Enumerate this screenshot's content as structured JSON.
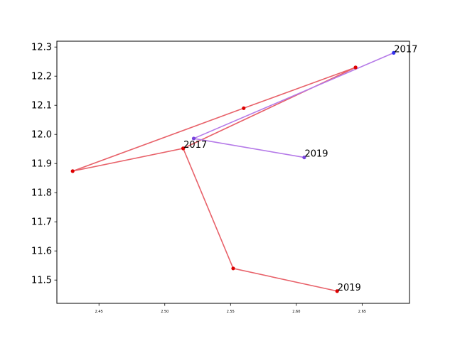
{
  "chart_data": {
    "type": "line",
    "title": "",
    "xlabel": "",
    "ylabel": "",
    "xlim": [
      2.418,
      2.686
    ],
    "ylim": [
      11.42,
      12.32
    ],
    "xticks": [
      "2.45",
      "2.50",
      "2.55",
      "2.60",
      "2.65"
    ],
    "xtick_values": [
      2.45,
      2.5,
      2.55,
      2.6,
      2.65
    ],
    "yticks": [
      "11.5",
      "11.6",
      "11.7",
      "11.8",
      "11.9",
      "12.0",
      "12.1",
      "12.2",
      "12.3"
    ],
    "ytick_values": [
      11.5,
      11.6,
      11.7,
      11.8,
      11.9,
      12.0,
      12.1,
      12.2,
      12.3
    ],
    "grid": false,
    "series": [
      {
        "line_color": "#e8626a",
        "marker_color": "#dd0000",
        "points": [
          {
            "x": 2.514,
            "y": 11.952
          },
          {
            "x": 2.43,
            "y": 11.874
          },
          {
            "x": 2.56,
            "y": 12.09
          },
          {
            "x": 2.645,
            "y": 12.23
          },
          {
            "x": 2.514,
            "y": 11.952
          },
          {
            "x": 2.552,
            "y": 11.54
          },
          {
            "x": 2.631,
            "y": 11.462
          }
        ]
      },
      {
        "line_color": "#b57ae8",
        "marker_color": "#7744dd",
        "marker_colors": [
          "#3333ee",
          "#7744dd",
          "#7744dd"
        ],
        "points": [
          {
            "x": 2.674,
            "y": 12.28
          },
          {
            "x": 2.522,
            "y": 11.986
          },
          {
            "x": 2.606,
            "y": 11.921
          }
        ]
      }
    ],
    "annotations": [
      {
        "text": "2017",
        "x": 2.674,
        "y": 12.28
      },
      {
        "text": "2019",
        "x": 2.606,
        "y": 11.921
      },
      {
        "text": "2017",
        "x": 2.514,
        "y": 11.952
      },
      {
        "text": "2019",
        "x": 2.631,
        "y": 11.462
      }
    ]
  }
}
